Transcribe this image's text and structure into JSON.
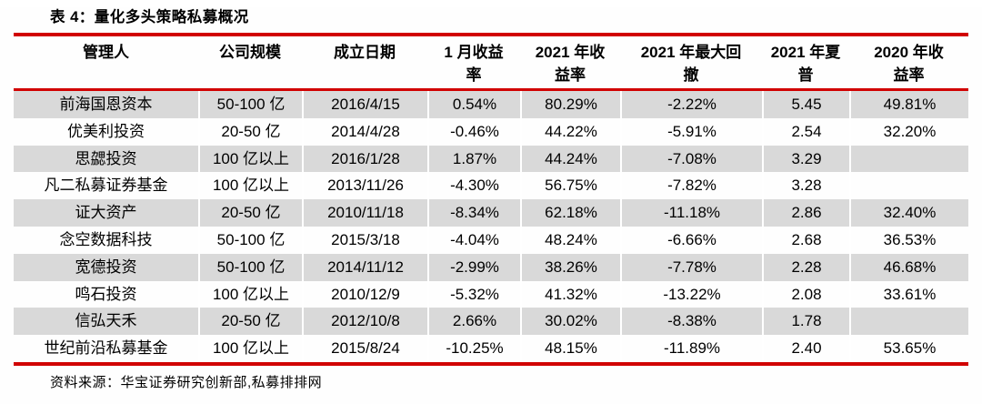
{
  "title": "表 4：量化多头策略私募概况",
  "source": "资料来源：华宝证券研究创新部,私募排排网",
  "colors": {
    "rule_red": "#d10000",
    "row_alt_gray": "#d9d9d9",
    "text": "#000000"
  },
  "table": {
    "columns": [
      "管理人",
      "公司规模",
      "成立日期",
      "1 月收益\n率",
      "2021 年收\n益率",
      "2021 年最大回\n撤",
      "2021 年夏\n普",
      "2020 年收\n益率"
    ],
    "rows": [
      {
        "manager": "前海国恩资本",
        "scale": "50-100 亿",
        "founded": "2016/4/15",
        "jan_return": "0.54%",
        "ret_2021": "80.29%",
        "max_dd_2021": "-2.22%",
        "sharpe_2021": "5.45",
        "ret_2020": "49.81%"
      },
      {
        "manager": "优美利投资",
        "scale": "20-50 亿",
        "founded": "2014/4/28",
        "jan_return": "-0.46%",
        "ret_2021": "44.22%",
        "max_dd_2021": "-5.91%",
        "sharpe_2021": "2.54",
        "ret_2020": "32.20%"
      },
      {
        "manager": "思勰投资",
        "scale": "100 亿以上",
        "founded": "2016/1/28",
        "jan_return": "1.87%",
        "ret_2021": "44.24%",
        "max_dd_2021": "-7.08%",
        "sharpe_2021": "3.29",
        "ret_2020": ""
      },
      {
        "manager": "凡二私募证券基金",
        "scale": "100 亿以上",
        "founded": "2013/11/26",
        "jan_return": "-4.30%",
        "ret_2021": "56.75%",
        "max_dd_2021": "-7.82%",
        "sharpe_2021": "3.28",
        "ret_2020": ""
      },
      {
        "manager": "证大资产",
        "scale": "20-50 亿",
        "founded": "2010/11/18",
        "jan_return": "-8.34%",
        "ret_2021": "62.18%",
        "max_dd_2021": "-11.18%",
        "sharpe_2021": "2.86",
        "ret_2020": "32.40%"
      },
      {
        "manager": "念空数据科技",
        "scale": "50-100 亿",
        "founded": "2015/3/18",
        "jan_return": "-4.04%",
        "ret_2021": "48.24%",
        "max_dd_2021": "-6.66%",
        "sharpe_2021": "2.68",
        "ret_2020": "36.53%"
      },
      {
        "manager": "宽德投资",
        "scale": "50-100 亿",
        "founded": "2014/11/12",
        "jan_return": "-2.99%",
        "ret_2021": "38.26%",
        "max_dd_2021": "-7.78%",
        "sharpe_2021": "2.28",
        "ret_2020": "46.68%"
      },
      {
        "manager": "鸣石投资",
        "scale": "100 亿以上",
        "founded": "2010/12/9",
        "jan_return": "-5.32%",
        "ret_2021": "41.32%",
        "max_dd_2021": "-13.22%",
        "sharpe_2021": "2.08",
        "ret_2020": "33.61%"
      },
      {
        "manager": "信弘天禾",
        "scale": "20-50 亿",
        "founded": "2012/10/8",
        "jan_return": "2.66%",
        "ret_2021": "30.02%",
        "max_dd_2021": "-8.38%",
        "sharpe_2021": "1.78",
        "ret_2020": ""
      },
      {
        "manager": "世纪前沿私募基金",
        "scale": "100 亿以上",
        "founded": "2015/8/24",
        "jan_return": "-10.25%",
        "ret_2021": "48.15%",
        "max_dd_2021": "-11.89%",
        "sharpe_2021": "2.40",
        "ret_2020": "53.65%"
      }
    ]
  }
}
